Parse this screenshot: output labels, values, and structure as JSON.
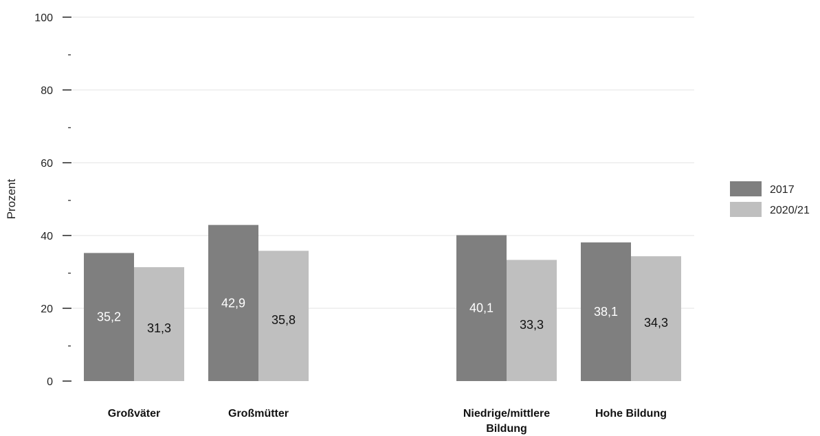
{
  "chart_data": {
    "type": "bar",
    "ylabel": "Prozent",
    "xlabel": "",
    "ylim": [
      0,
      100
    ],
    "yticks": [
      0,
      20,
      40,
      60,
      80,
      100
    ],
    "minor_ticks": [
      10,
      30,
      50,
      70,
      90
    ],
    "minor_tick_label": "-",
    "grid": true,
    "legend_position": "right",
    "categories": [
      {
        "label": "Großväter",
        "lines": [
          "Großväter"
        ]
      },
      {
        "label": "Großmütter",
        "lines": [
          "Großmütter"
        ]
      },
      {
        "label": "Niedrige/mittlere Bildung",
        "lines": [
          "Niedrige/mittlere",
          "Bildung"
        ]
      },
      {
        "label": "Hohe Bildung",
        "lines": [
          "Hohe Bildung"
        ]
      }
    ],
    "series": [
      {
        "name": "2017",
        "color": "#7f7f7f",
        "label_color": "#ffffff",
        "values": [
          35.2,
          42.9,
          40.1,
          38.1
        ],
        "value_labels": [
          "35,2",
          "42,9",
          "40,1",
          "38,1"
        ]
      },
      {
        "name": "2020/21",
        "color": "#bfbfbf",
        "label_color": "#111111",
        "values": [
          31.3,
          35.8,
          33.3,
          34.3
        ],
        "value_labels": [
          "31,3",
          "35,8",
          "33,3",
          "34,3"
        ]
      }
    ]
  }
}
